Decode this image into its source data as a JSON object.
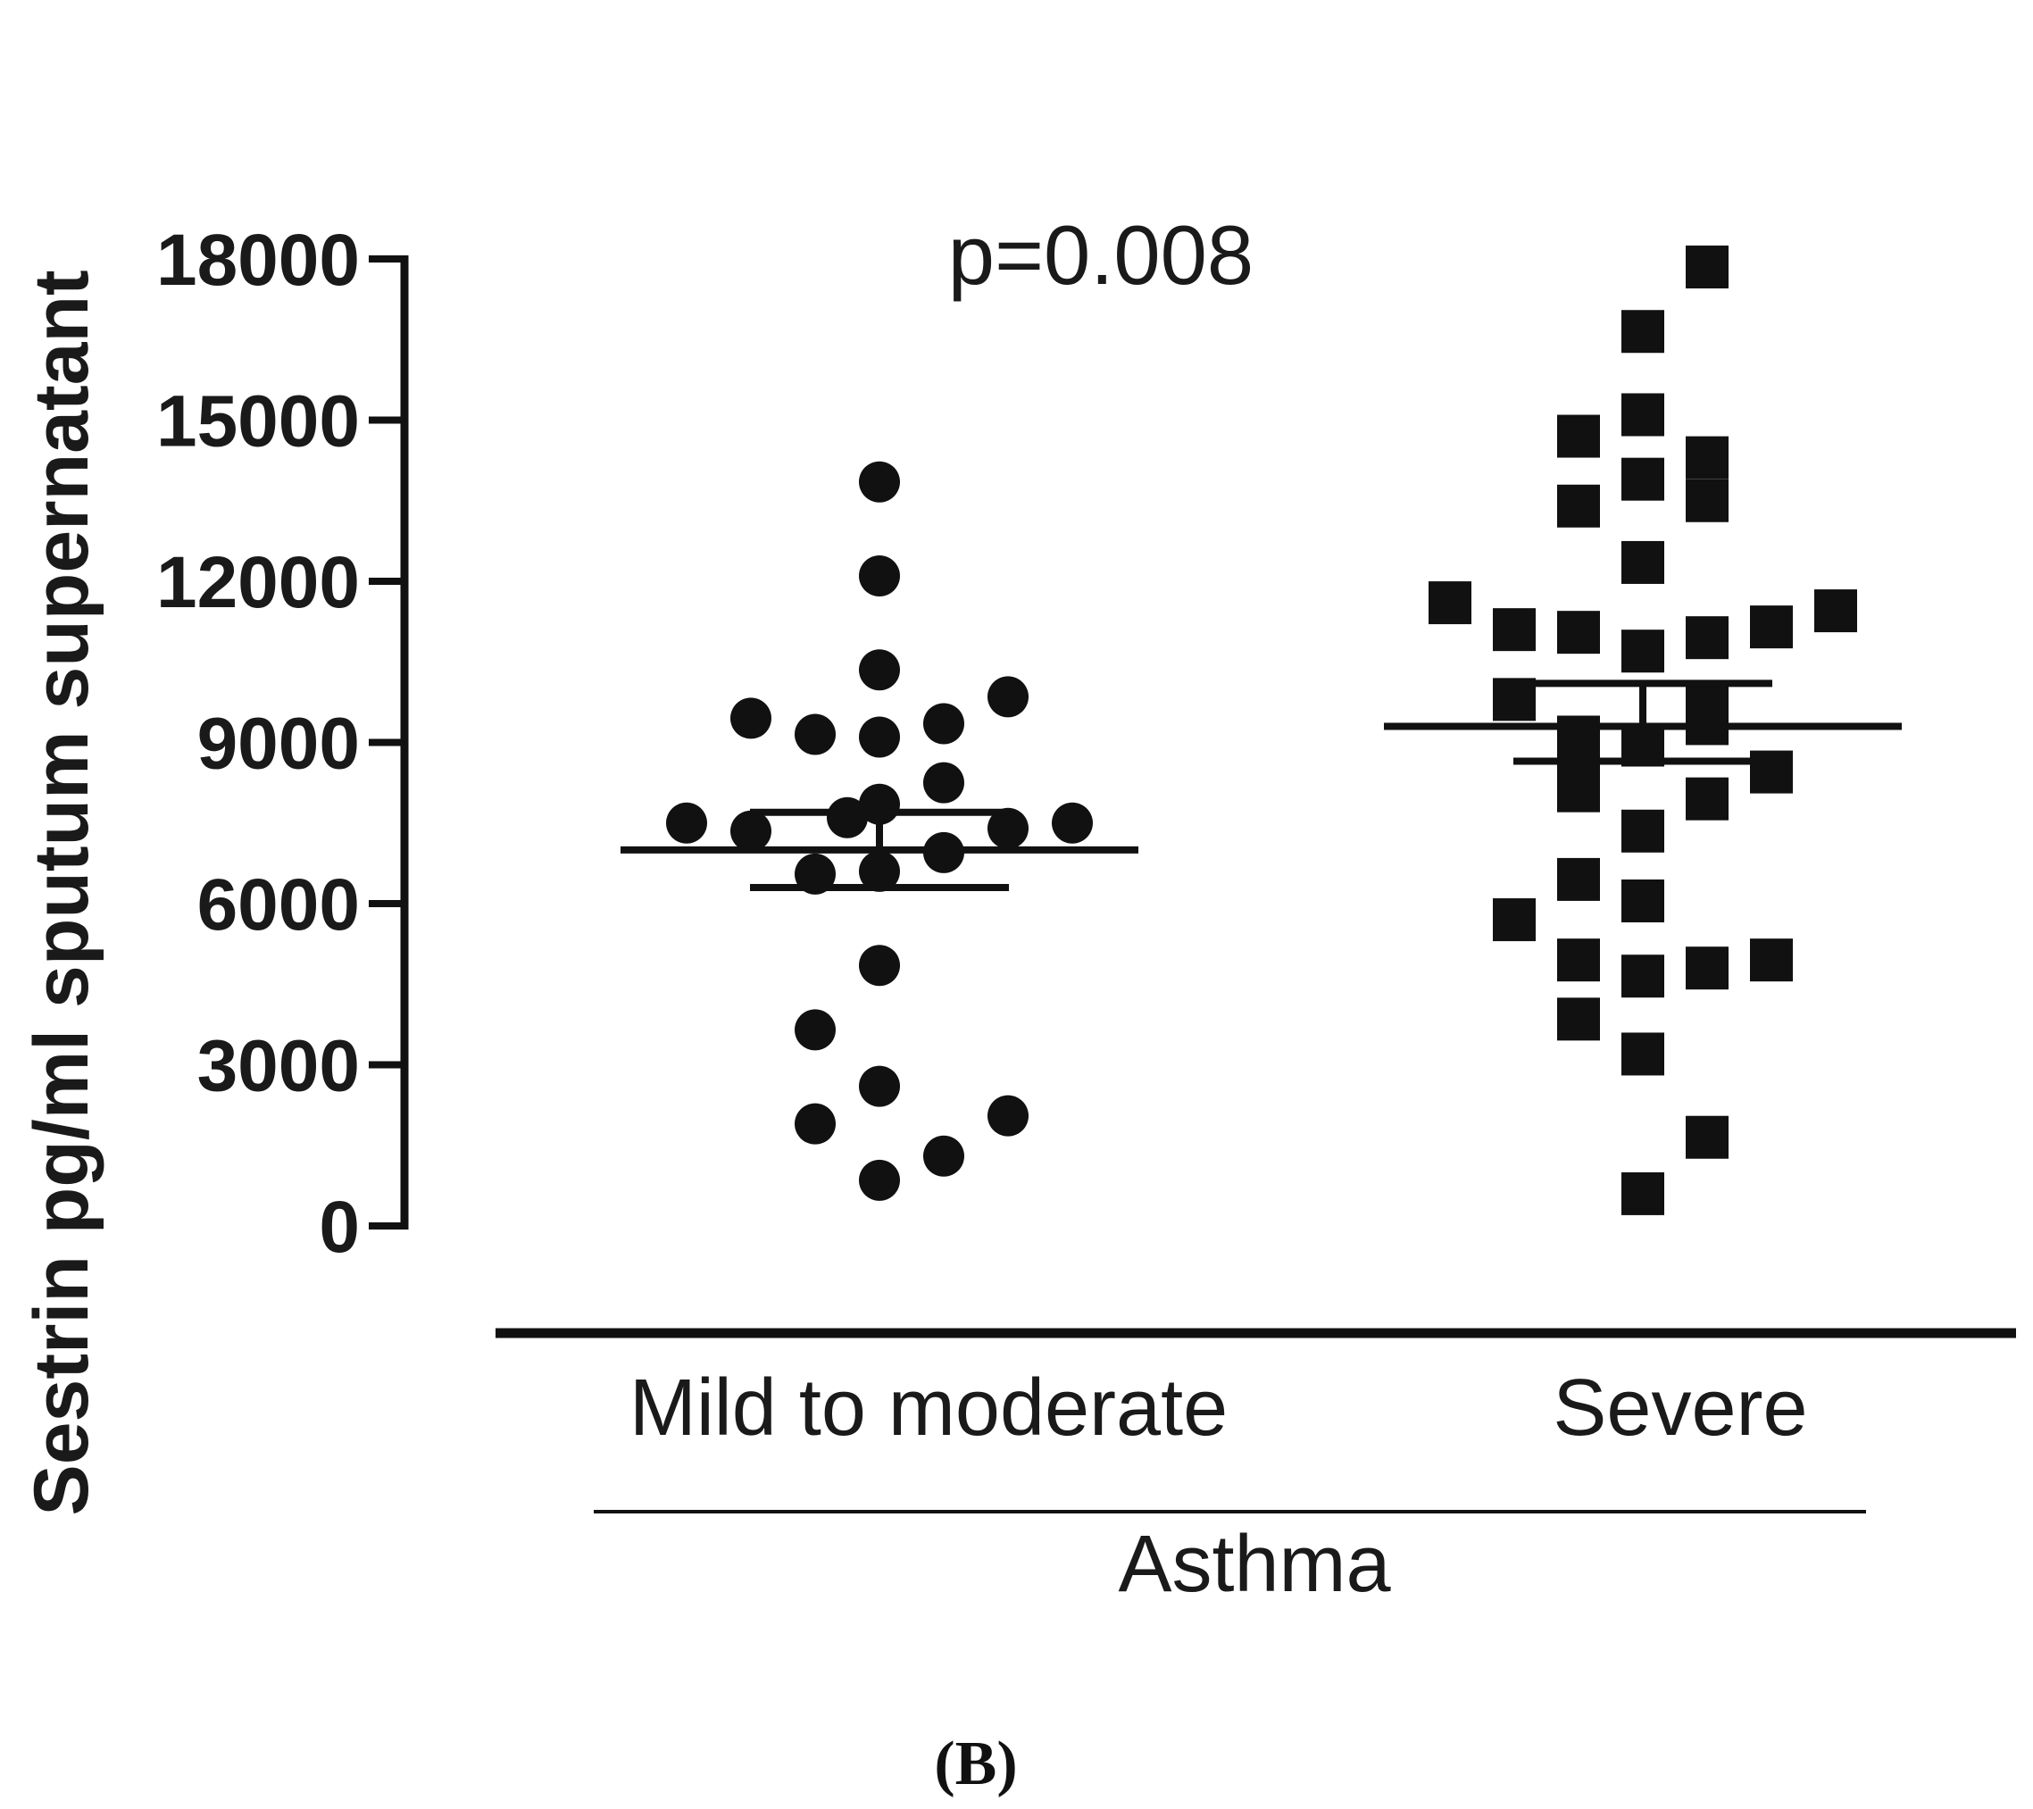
{
  "chart_data": {
    "type": "scatter",
    "subtype": "dot-plot with mean and SEM bars",
    "title": "",
    "ylabel": "Sestrin pg/ml sputum supernatant",
    "xlabel": "Asthma",
    "ylim": [
      0,
      18000
    ],
    "yticks": [
      0,
      3000,
      6000,
      9000,
      12000,
      15000,
      18000
    ],
    "ytick_labels": [
      "0",
      "3000",
      "6000",
      "9000",
      "12000",
      "15000",
      "18000"
    ],
    "annotation": "p=0.008",
    "panel_label": "(B)",
    "colors": {
      "marker": "#111111",
      "axis": "#111111",
      "text": "#1a1a1a"
    },
    "groups": [
      {
        "name": "Mild to moderate",
        "marker": "circle",
        "mean": 7000,
        "sem_low": 6300,
        "sem_high": 7700,
        "points": [
          {
            "offset": 0,
            "y": 13850
          },
          {
            "offset": 0,
            "y": 12100
          },
          {
            "offset": 0,
            "y": 10350
          },
          {
            "offset": -2,
            "y": 9450
          },
          {
            "offset": -1,
            "y": 9150
          },
          {
            "offset": 0,
            "y": 9100
          },
          {
            "offset": 1,
            "y": 9350
          },
          {
            "offset": 2,
            "y": 9850
          },
          {
            "offset": 1,
            "y": 8250
          },
          {
            "offset": 0,
            "y": 7850
          },
          {
            "offset": -0.5,
            "y": 7600
          },
          {
            "offset": -3,
            "y": 7500
          },
          {
            "offset": -2,
            "y": 7350
          },
          {
            "offset": 2,
            "y": 7400
          },
          {
            "offset": 3,
            "y": 7500
          },
          {
            "offset": 1,
            "y": 6950
          },
          {
            "offset": -1,
            "y": 6550
          },
          {
            "offset": 0,
            "y": 6600
          },
          {
            "offset": 0,
            "y": 4850
          },
          {
            "offset": -1,
            "y": 3650
          },
          {
            "offset": 0,
            "y": 2600
          },
          {
            "offset": -1,
            "y": 1900
          },
          {
            "offset": 2,
            "y": 2050
          },
          {
            "offset": 1,
            "y": 1300
          },
          {
            "offset": 0,
            "y": 850
          }
        ]
      },
      {
        "name": "Severe",
        "marker": "square",
        "mean": 9300,
        "sem_low": 8650,
        "sem_high": 10100,
        "points": [
          {
            "offset": 1,
            "y": 17850
          },
          {
            "offset": 0,
            "y": 16650
          },
          {
            "offset": 0,
            "y": 15100
          },
          {
            "offset": -1,
            "y": 14700
          },
          {
            "offset": 1,
            "y": 14300
          },
          {
            "offset": 0,
            "y": 13900
          },
          {
            "offset": 1,
            "y": 13500
          },
          {
            "offset": -1,
            "y": 13400
          },
          {
            "offset": 0,
            "y": 12350
          },
          {
            "offset": -3,
            "y": 11600
          },
          {
            "offset": 3,
            "y": 11450
          },
          {
            "offset": -2,
            "y": 11100
          },
          {
            "offset": -1,
            "y": 11050
          },
          {
            "offset": 2,
            "y": 11150
          },
          {
            "offset": 1,
            "y": 10950
          },
          {
            "offset": 0,
            "y": 10700
          },
          {
            "offset": -2,
            "y": 9800
          },
          {
            "offset": 1,
            "y": 9700
          },
          {
            "offset": 1,
            "y": 9350
          },
          {
            "offset": -1,
            "y": 9100
          },
          {
            "offset": 0,
            "y": 8950
          },
          {
            "offset": -1,
            "y": 8600
          },
          {
            "offset": 2,
            "y": 8450
          },
          {
            "offset": -1,
            "y": 8100
          },
          {
            "offset": 1,
            "y": 7950
          },
          {
            "offset": 0,
            "y": 7350
          },
          {
            "offset": -1,
            "y": 6450
          },
          {
            "offset": 0,
            "y": 6050
          },
          {
            "offset": -2,
            "y": 5700
          },
          {
            "offset": -1,
            "y": 4950
          },
          {
            "offset": 2,
            "y": 4950
          },
          {
            "offset": 0,
            "y": 4650
          },
          {
            "offset": 1,
            "y": 4800
          },
          {
            "offset": -1,
            "y": 3850
          },
          {
            "offset": 0,
            "y": 3200
          },
          {
            "offset": 1,
            "y": 1650
          },
          {
            "offset": 0,
            "y": 600
          }
        ]
      }
    ]
  }
}
